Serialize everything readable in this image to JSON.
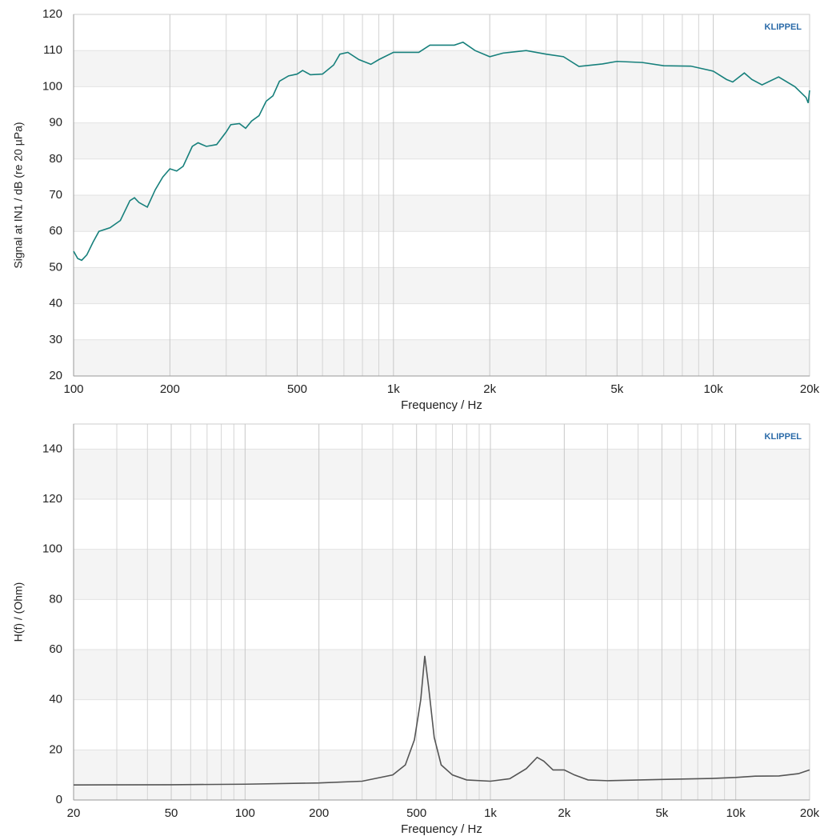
{
  "chart_data": [
    {
      "type": "line",
      "log_x": true,
      "grid": true,
      "logo": "KLIPPEL",
      "color": "#17807c",
      "xlabel": "Frequency / Hz",
      "ylabel": "Signal at IN1 / dB (re 20 µPa)",
      "xlim": [
        100,
        20000
      ],
      "ylim": [
        20,
        120
      ],
      "xticks": [
        100,
        200,
        500,
        {
          "value": 1000,
          "label": "1k"
        },
        {
          "value": 2000,
          "label": "2k"
        },
        {
          "value": 5000,
          "label": "5k"
        },
        {
          "value": 10000,
          "label": "10k"
        },
        {
          "value": 20000,
          "label": "20k"
        }
      ],
      "xgrid_minor": [
        300,
        400,
        600,
        700,
        800,
        900,
        3000,
        4000,
        6000,
        7000,
        8000,
        9000
      ],
      "yticks": [
        20,
        30,
        40,
        50,
        60,
        70,
        80,
        90,
        100,
        110,
        120
      ],
      "x": [
        100,
        103,
        106,
        110,
        115,
        120,
        130,
        140,
        150,
        155,
        160,
        170,
        180,
        190,
        200,
        210,
        220,
        235,
        245,
        260,
        280,
        300,
        310,
        330,
        345,
        360,
        380,
        400,
        420,
        440,
        470,
        500,
        520,
        550,
        600,
        650,
        680,
        720,
        780,
        850,
        900,
        1000,
        1100,
        1200,
        1300,
        1400,
        1550,
        1650,
        1800,
        2000,
        2200,
        2600,
        3000,
        3400,
        3800,
        4500,
        5000,
        6000,
        7000,
        8500,
        10000,
        11000,
        11500,
        12500,
        13200,
        14200,
        16000,
        18000,
        19500,
        19800,
        20000
      ],
      "values": [
        54.5,
        52.5,
        52,
        53.5,
        57,
        60,
        61,
        63,
        68.5,
        69.3,
        68,
        66.7,
        71.5,
        75,
        77.3,
        76.7,
        78,
        83.5,
        84.5,
        83.5,
        84,
        87.5,
        89.5,
        89.8,
        88.5,
        90.5,
        92,
        96,
        97.5,
        101.5,
        103,
        103.5,
        104.5,
        103.3,
        103.5,
        106,
        109,
        109.5,
        107.5,
        106.2,
        107.5,
        109.5,
        109.5,
        109.5,
        111.5,
        111.5,
        111.5,
        112.3,
        110,
        108.3,
        109.3,
        110,
        109,
        108.3,
        105.6,
        106.3,
        107,
        106.7,
        105.8,
        105.7,
        104.3,
        102,
        101.3,
        103.8,
        102,
        100.5,
        102.7,
        100,
        97,
        95.5,
        99
      ]
    },
    {
      "type": "line",
      "log_x": true,
      "grid": true,
      "logo": "KLIPPEL",
      "color": "#555555",
      "xlabel": "Frequency / Hz",
      "ylabel": "H(f) / (Ohm)",
      "xlim": [
        20,
        20000
      ],
      "ylim": [
        0,
        150
      ],
      "xticks": [
        20,
        50,
        100,
        200,
        500,
        {
          "value": 1000,
          "label": "1k"
        },
        {
          "value": 2000,
          "label": "2k"
        },
        {
          "value": 5000,
          "label": "5k"
        },
        {
          "value": 10000,
          "label": "10k"
        },
        {
          "value": 20000,
          "label": "20k"
        }
      ],
      "xgrid_minor": [
        30,
        40,
        60,
        70,
        80,
        90,
        300,
        400,
        600,
        700,
        800,
        900,
        3000,
        4000,
        6000,
        7000,
        8000,
        9000
      ],
      "yticks": [
        0,
        20,
        40,
        60,
        80,
        100,
        120,
        140
      ],
      "x": [
        20,
        50,
        100,
        200,
        300,
        400,
        450,
        490,
        520,
        540,
        560,
        590,
        630,
        700,
        800,
        1000,
        1200,
        1400,
        1550,
        1650,
        1800,
        2000,
        2200,
        2500,
        3000,
        5000,
        8000,
        10000,
        12000,
        15000,
        18000,
        20000
      ],
      "values": [
        6,
        6.1,
        6.3,
        6.8,
        7.5,
        10,
        14,
        24,
        40,
        57.5,
        45,
        25,
        14,
        10,
        8,
        7.5,
        8.5,
        12.5,
        17,
        15.5,
        12,
        12,
        10,
        8,
        7.7,
        8.2,
        8.6,
        9,
        9.5,
        9.6,
        10.5,
        12
      ]
    }
  ]
}
